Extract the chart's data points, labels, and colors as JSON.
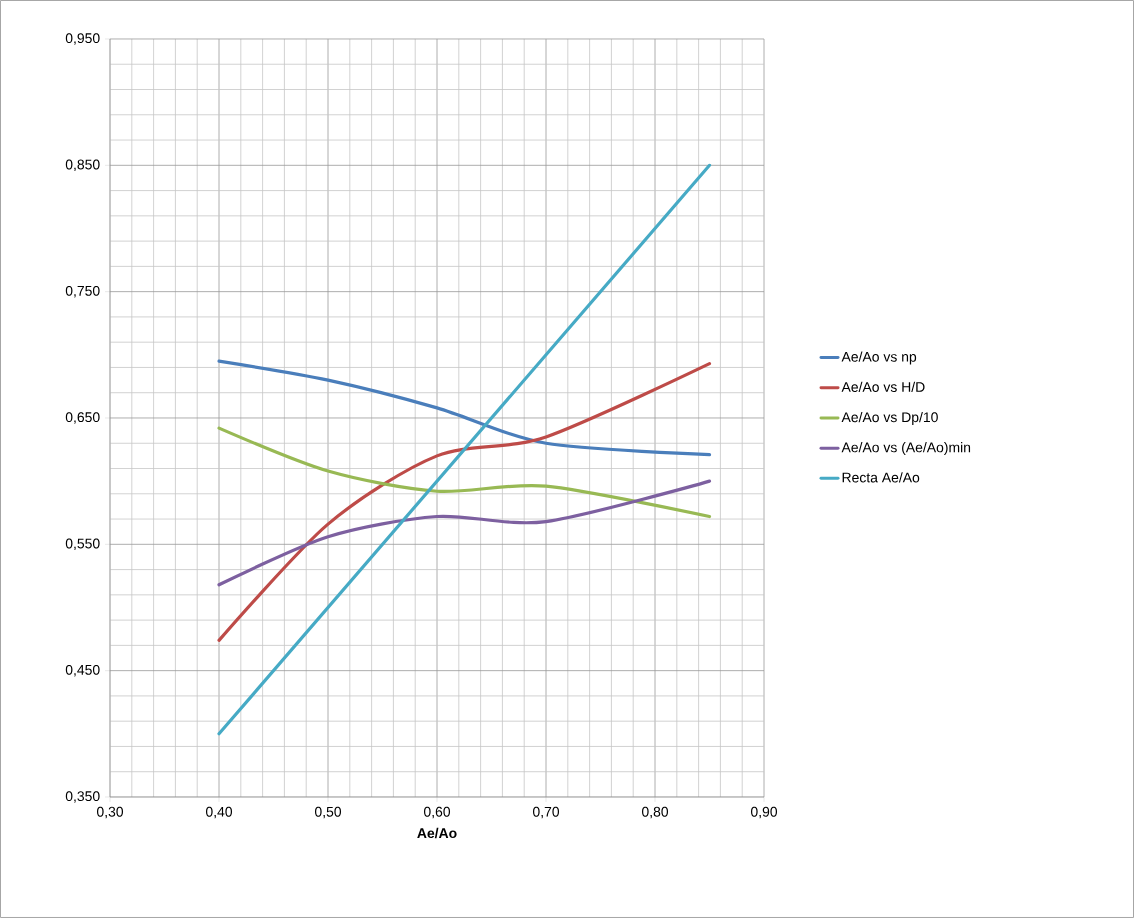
{
  "chart_data": {
    "type": "line",
    "xlabel": "Ae/Ao",
    "x": [
      0.4,
      0.5,
      0.6,
      0.7,
      0.85
    ],
    "xlim": [
      0.3,
      0.9
    ],
    "ylim": [
      0.35,
      0.95
    ],
    "xticks": [
      {
        "value": 0.3,
        "label": "0,30"
      },
      {
        "value": 0.4,
        "label": "0,40"
      },
      {
        "value": 0.5,
        "label": "0,50"
      },
      {
        "value": 0.6,
        "label": "0,60"
      },
      {
        "value": 0.7,
        "label": "0,70"
      },
      {
        "value": 0.8,
        "label": "0,80"
      },
      {
        "value": 0.9,
        "label": "0,90"
      }
    ],
    "yticks": [
      {
        "value": 0.35,
        "label": "0,350"
      },
      {
        "value": 0.45,
        "label": "0,450"
      },
      {
        "value": 0.55,
        "label": "0,550"
      },
      {
        "value": 0.65,
        "label": "0,650"
      },
      {
        "value": 0.75,
        "label": "0,750"
      },
      {
        "value": 0.85,
        "label": "0,850"
      },
      {
        "value": 0.95,
        "label": "0,950"
      }
    ],
    "grid": true,
    "legend": "right",
    "marker": "none",
    "series": [
      {
        "name": "Ae/Ao vs np",
        "color": "#4a7ebb",
        "values": [
          0.695,
          0.68,
          0.658,
          0.63,
          0.621
        ]
      },
      {
        "name": "Ae/Ao vs H/D",
        "color": "#be4b48",
        "values": [
          0.474,
          0.566,
          0.62,
          0.635,
          0.693
        ]
      },
      {
        "name": "Ae/Ao vs Dp/10",
        "color": "#98b954",
        "values": [
          0.642,
          0.608,
          0.592,
          0.596,
          0.572
        ]
      },
      {
        "name": "Ae/Ao vs (Ae/Ao)min",
        "color": "#7d60a0",
        "values": [
          0.518,
          0.556,
          0.572,
          0.568,
          0.6
        ]
      },
      {
        "name": "Recta Ae/Ao",
        "color": "#46aac5",
        "x": [
          0.4,
          0.85
        ],
        "values": [
          0.4,
          0.85
        ]
      }
    ]
  }
}
